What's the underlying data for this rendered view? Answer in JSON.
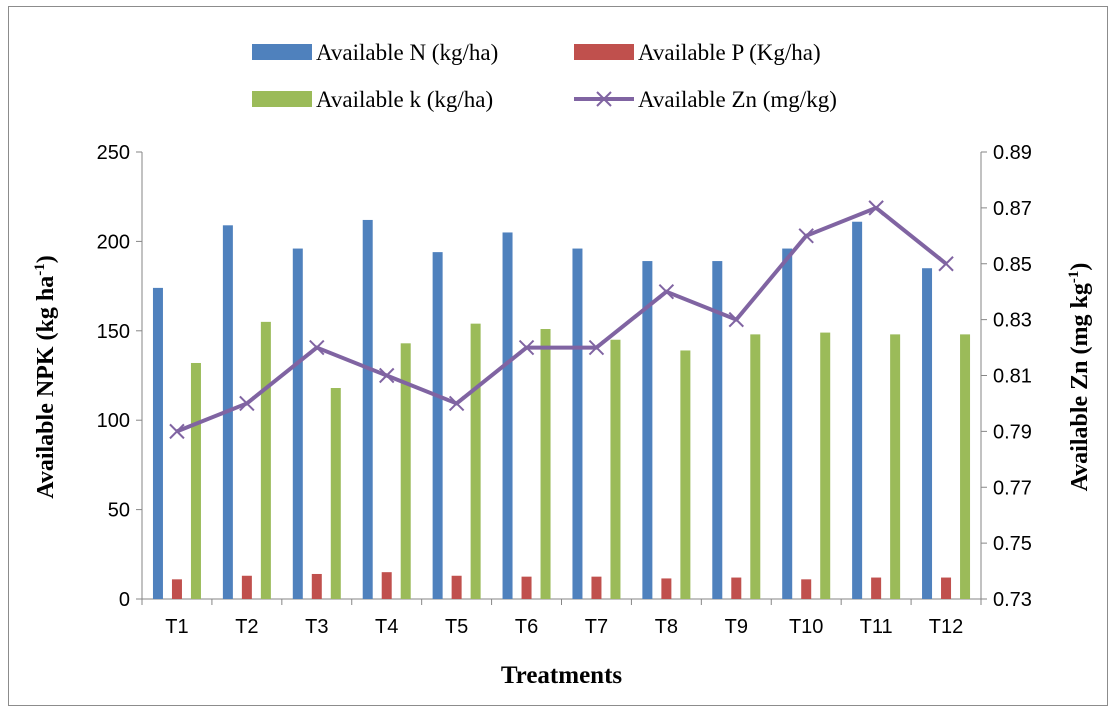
{
  "chart_data": {
    "type": "bar",
    "title": "",
    "xlabel": "Treatments",
    "ylabel": "Available NPK (kg ha",
    "ylabel_sup": "-1",
    "ylabel_end": ")",
    "y2label": "Available Zn (mg kg",
    "y2label_sup": "-1",
    "y2label_end": ")",
    "categories": [
      "T1",
      "T2",
      "T3",
      "T4",
      "T5",
      "T6",
      "T7",
      "T8",
      "T9",
      "T10",
      "T11",
      "T12"
    ],
    "ylim": [
      0,
      250
    ],
    "y_ticks": [
      "0",
      "50",
      "100",
      "150",
      "200",
      "250"
    ],
    "y2lim": [
      0.73,
      0.89
    ],
    "y2_ticks": [
      "0.73",
      "0.75",
      "0.77",
      "0.79",
      "0.81",
      "0.83",
      "0.85",
      "0.87",
      "0.89"
    ],
    "grid": false,
    "legend_position": "top",
    "series": [
      {
        "name": "Available N (kg/ha)",
        "type": "bar",
        "color": "#4f81bd",
        "axis": "left",
        "values": [
          174,
          209,
          196,
          212,
          194,
          205,
          196,
          189,
          189,
          196,
          211,
          185
        ]
      },
      {
        "name": "Available P (Kg/ha)",
        "type": "bar",
        "color": "#c0504d",
        "axis": "left",
        "values": [
          11,
          13,
          14,
          15,
          13,
          12.5,
          12.5,
          11.5,
          12,
          11,
          12,
          12
        ]
      },
      {
        "name": "Available k (kg/ha)",
        "type": "bar",
        "color": "#9bbb59",
        "axis": "left",
        "values": [
          132,
          155,
          118,
          143,
          154,
          151,
          145,
          139,
          148,
          149,
          148,
          148
        ]
      },
      {
        "name": "Available Zn (mg/kg)",
        "type": "line",
        "marker": "x",
        "color": "#8064a2",
        "axis": "right",
        "values": [
          0.79,
          0.8,
          0.82,
          0.81,
          0.8,
          0.82,
          0.82,
          0.84,
          0.83,
          0.86,
          0.87,
          0.85
        ]
      }
    ]
  }
}
